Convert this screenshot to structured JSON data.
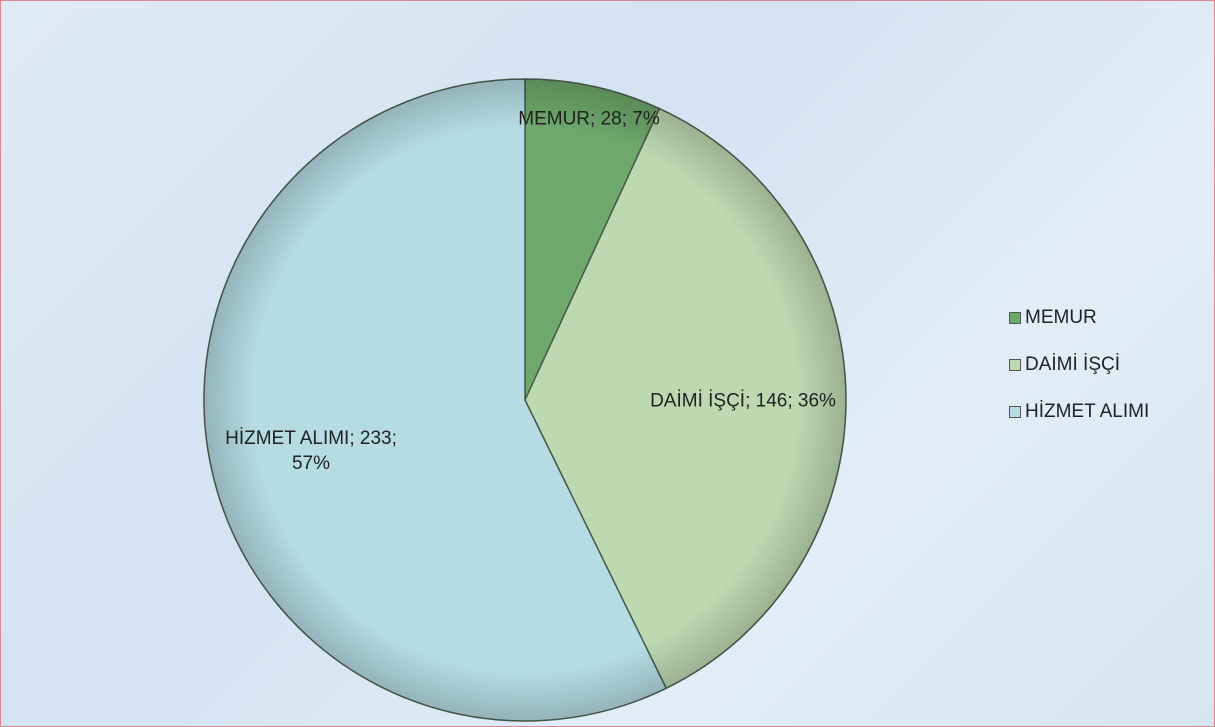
{
  "chart_data": {
    "type": "pie",
    "categories": [
      "MEMUR",
      "DAİMİ İŞÇİ",
      "HİZMET ALIMI"
    ],
    "values": [
      28,
      146,
      233
    ],
    "value_labels": [
      "MEMUR; 28; 7%",
      "DAİMİ İŞÇİ; 146; 36%",
      "HİZMET ALIMI; 233; 57%"
    ],
    "colors": [
      "#6ea86c",
      "#bcd9b2",
      "#b5dbe3"
    ],
    "legend": "right"
  }
}
